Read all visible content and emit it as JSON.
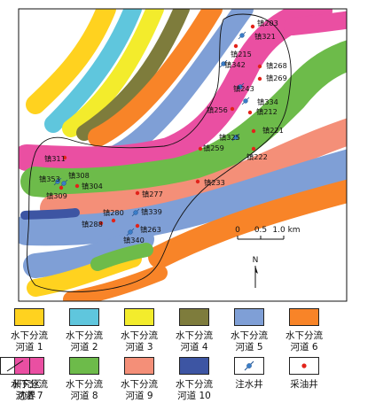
{
  "map": {
    "scale_labels": [
      "0",
      "0.5",
      "1.0 km"
    ],
    "north_label": "N",
    "channel_colors": {
      "ch1": "#ffd21f",
      "ch2": "#5fc6dd",
      "ch3": "#f3ec2c",
      "ch4": "#7e7c3c",
      "ch5": "#7f9fd6",
      "ch6": "#f88428",
      "ch7": "#ea4fa2",
      "ch8": "#6dbb4a",
      "ch9": "#f48f78",
      "ch10": "#3d55a3"
    },
    "injection_wells": [
      {
        "label": "镇321"
      },
      {
        "label": "镇342"
      },
      {
        "label": "镇243"
      },
      {
        "label": "镇334"
      },
      {
        "label": "镇325"
      },
      {
        "label": "镇353"
      },
      {
        "label": "镇308"
      },
      {
        "label": "镇339"
      },
      {
        "label": "镇340"
      }
    ],
    "oil_wells": [
      {
        "label": "镇203"
      },
      {
        "label": "镇215"
      },
      {
        "label": "镇268"
      },
      {
        "label": "镇269"
      },
      {
        "label": "镇256"
      },
      {
        "label": "镇212"
      },
      {
        "label": "镇221"
      },
      {
        "label": "镇259"
      },
      {
        "label": "镇222"
      },
      {
        "label": "镇233"
      },
      {
        "label": "镇311"
      },
      {
        "label": "镇309"
      },
      {
        "label": "镇304"
      },
      {
        "label": "镇277"
      },
      {
        "label": "镇280"
      },
      {
        "label": "镇288"
      },
      {
        "label": "镇263"
      }
    ]
  },
  "legend": {
    "items": [
      {
        "label_line1": "水下分流",
        "label_line2": "河道 1",
        "color": "#ffd21f",
        "icon": "channel-swatch"
      },
      {
        "label_line1": "水下分流",
        "label_line2": "河道 2",
        "color": "#5fc6dd",
        "icon": "channel-swatch"
      },
      {
        "label_line1": "水下分流",
        "label_line2": "河道 3",
        "color": "#f3ec2c",
        "icon": "channel-swatch"
      },
      {
        "label_line1": "水下分流",
        "label_line2": "河道 4",
        "color": "#7e7c3c",
        "icon": "channel-swatch"
      },
      {
        "label_line1": "水下分流",
        "label_line2": "河道 5",
        "color": "#7f9fd6",
        "icon": "channel-swatch"
      },
      {
        "label_line1": "水下分流",
        "label_line2": "河道 6",
        "color": "#f88428",
        "icon": "channel-swatch"
      },
      {
        "label_line1": "水下分流",
        "label_line2": "河道 7",
        "color": "#ea4fa2",
        "icon": "channel-swatch"
      },
      {
        "label_line1": "水下分流",
        "label_line2": "河道 8",
        "color": "#6dbb4a",
        "icon": "channel-swatch"
      },
      {
        "label_line1": "水下分流",
        "label_line2": "河道 9",
        "color": "#f48f78",
        "icon": "channel-swatch"
      },
      {
        "label_line1": "水下分流",
        "label_line2": "河道 10",
        "color": "#3d55a3",
        "icon": "channel-swatch"
      },
      {
        "label_line1": "注水井",
        "label_line2": "",
        "icon": "injection-well-icon"
      },
      {
        "label_line1": "采油井",
        "label_line2": "",
        "icon": "oil-well-icon"
      },
      {
        "label_line1": "研究区",
        "label_line2": "边界",
        "icon": "boundary-line-icon"
      }
    ]
  }
}
